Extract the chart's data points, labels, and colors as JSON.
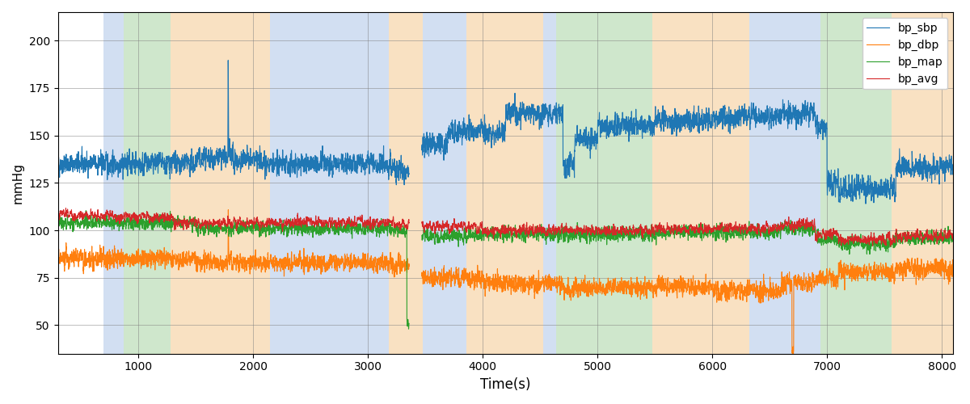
{
  "xlabel": "Time(s)",
  "ylabel": "mmHg",
  "xlim": [
    300,
    8100
  ],
  "ylim": [
    35,
    215
  ],
  "yticks": [
    50,
    75,
    100,
    125,
    150,
    175,
    200
  ],
  "xticks": [
    1000,
    2000,
    3000,
    4000,
    5000,
    6000,
    7000,
    8000
  ],
  "figsize": [
    12,
    5
  ],
  "dpi": 100,
  "bands": [
    {
      "xmin": 700,
      "xmax": 870,
      "color": "#aec6e8",
      "alpha": 0.55
    },
    {
      "xmin": 870,
      "xmax": 1280,
      "color": "#a8d5a2",
      "alpha": 0.55
    },
    {
      "xmin": 1280,
      "xmax": 2150,
      "color": "#f5c990",
      "alpha": 0.55
    },
    {
      "xmin": 2150,
      "xmax": 3180,
      "color": "#aec6e8",
      "alpha": 0.55
    },
    {
      "xmin": 3180,
      "xmax": 3480,
      "color": "#f5c990",
      "alpha": 0.55
    },
    {
      "xmin": 3480,
      "xmax": 3860,
      "color": "#aec6e8",
      "alpha": 0.55
    },
    {
      "xmin": 3860,
      "xmax": 4530,
      "color": "#f5c990",
      "alpha": 0.55
    },
    {
      "xmin": 4530,
      "xmax": 4640,
      "color": "#aec6e8",
      "alpha": 0.55
    },
    {
      "xmin": 4640,
      "xmax": 5480,
      "color": "#a8d5a2",
      "alpha": 0.55
    },
    {
      "xmin": 5480,
      "xmax": 6320,
      "color": "#f5c990",
      "alpha": 0.55
    },
    {
      "xmin": 6320,
      "xmax": 6940,
      "color": "#aec6e8",
      "alpha": 0.55
    },
    {
      "xmin": 6940,
      "xmax": 7560,
      "color": "#a8d5a2",
      "alpha": 0.55
    },
    {
      "xmin": 7560,
      "xmax": 8100,
      "color": "#f5c990",
      "alpha": 0.55
    }
  ],
  "line_colors": {
    "sbp": "#1f77b4",
    "dbp": "#ff7f0e",
    "map_": "#2ca02c",
    "avg": "#d62728"
  },
  "line_width": 0.8,
  "legend_labels": [
    "bp_sbp",
    "bp_dbp",
    "bp_map",
    "bp_avg"
  ],
  "seed": 42
}
